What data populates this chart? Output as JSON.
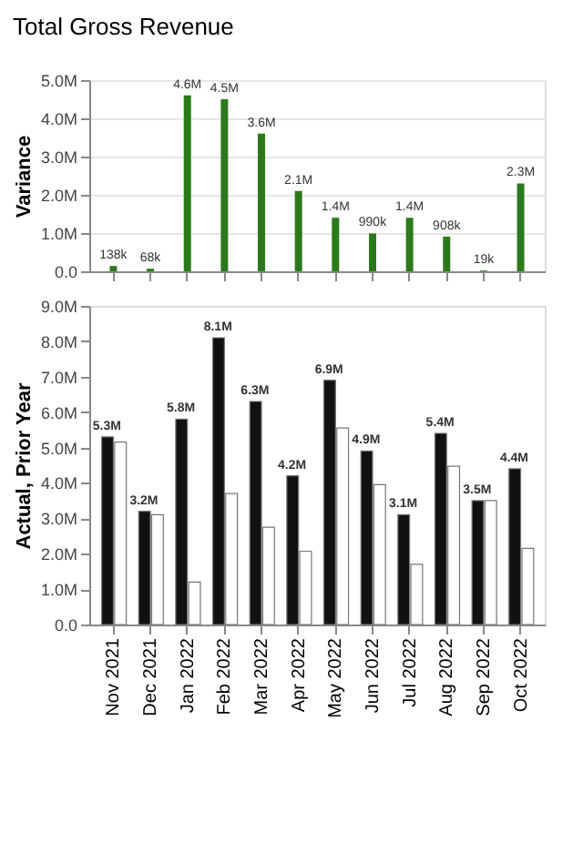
{
  "chart_data": [
    {
      "type": "bar",
      "title": "Total Gross Revenue",
      "ylabel": "Variance",
      "categories": [
        null,
        null,
        null,
        null,
        null,
        null,
        null,
        null,
        null,
        null,
        null,
        null
      ],
      "series": [
        {
          "color": "#2a7a1a",
          "values": [
            138000,
            68000,
            4600000,
            4500000,
            3600000,
            2100000,
            1400000,
            990000,
            1400000,
            908000,
            19000,
            2300000
          ],
          "value_labels": [
            "138k",
            "68k",
            "4.6M",
            "4.5M",
            "3.6M",
            "2.1M",
            "1.4M",
            "990k",
            "1.4M",
            "908k",
            "19k",
            "2.3M"
          ]
        }
      ],
      "ylim": [
        0,
        5000000
      ],
      "yticks": [
        {
          "value": 0,
          "label": "0.0"
        },
        {
          "value": 1000000,
          "label": "1.0M"
        },
        {
          "value": 2000000,
          "label": "2.0M"
        },
        {
          "value": 3000000,
          "label": "3.0M"
        },
        {
          "value": 4000000,
          "label": "4.0M"
        },
        {
          "value": 5000000,
          "label": "5.0M"
        }
      ],
      "grid": "y",
      "legend": false
    },
    {
      "type": "bar",
      "ylabel": "Actual, Prior Year",
      "categories": [
        "Nov 2021",
        "Dec 2021",
        "Jan 2022",
        "Feb 2022",
        "Mar 2022",
        "Apr 2022",
        "May 2022",
        "Jun 2022",
        "Jul 2022",
        "Aug 2022",
        "Sep 2022",
        "Oct 2022"
      ],
      "series": [
        {
          "color": "#111111",
          "values": [
            5300000,
            3200000,
            5800000,
            8100000,
            6300000,
            4200000,
            6900000,
            4900000,
            3100000,
            5400000,
            3500000,
            4400000
          ],
          "value_labels": [
            "5.3M",
            "3.2M",
            "5.8M",
            "8.1M",
            "6.3M",
            "4.2M",
            "6.9M",
            "4.9M",
            "3.1M",
            "5.4M",
            "3.5M",
            "4.4M"
          ]
        },
        {
          "color": "#ffffff",
          "values": [
            5150000,
            3100000,
            1200000,
            3700000,
            2750000,
            2070000,
            5550000,
            3950000,
            1700000,
            4470000,
            3500000,
            2150000
          ]
        }
      ],
      "ylim": [
        0,
        9000000
      ],
      "yticks": [
        {
          "value": 0,
          "label": "0.0"
        },
        {
          "value": 1000000,
          "label": "1.0M"
        },
        {
          "value": 2000000,
          "label": "2.0M"
        },
        {
          "value": 3000000,
          "label": "3.0M"
        },
        {
          "value": 4000000,
          "label": "4.0M"
        },
        {
          "value": 5000000,
          "label": "5.0M"
        },
        {
          "value": 6000000,
          "label": "6.0M"
        },
        {
          "value": 7000000,
          "label": "7.0M"
        },
        {
          "value": 8000000,
          "label": "8.0M"
        },
        {
          "value": 9000000,
          "label": "9.0M"
        }
      ],
      "grid": false,
      "legend": false
    }
  ]
}
